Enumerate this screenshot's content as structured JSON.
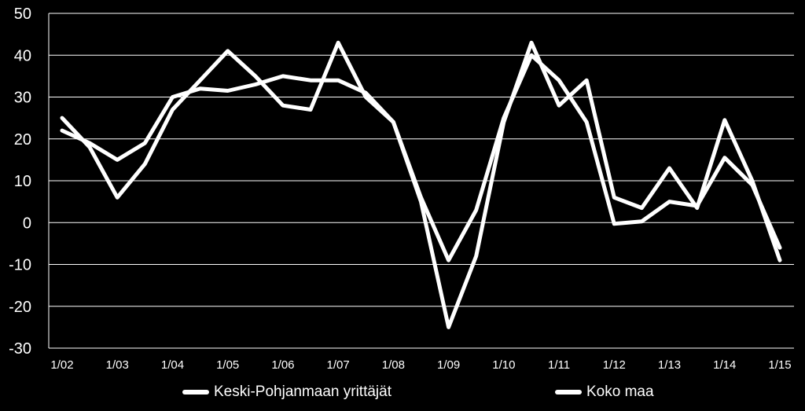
{
  "chart_data": {
    "type": "line",
    "x": [
      "1/02",
      "1/02b",
      "1/03",
      "1/03b",
      "1/04",
      "1/04b",
      "1/05",
      "1/05b",
      "1/06",
      "1/06b",
      "1/07",
      "1/07b",
      "1/08",
      "1/08b",
      "1/09",
      "1/09b",
      "1/10",
      "1/10b",
      "1/11",
      "1/11b",
      "1/12",
      "1/12b",
      "1/13",
      "1/13b",
      "1/14",
      "1/14b",
      "1/15"
    ],
    "tick_labels": [
      "1/02",
      "1/03",
      "1/04",
      "1/05",
      "1/06",
      "1/07",
      "1/08",
      "1/09",
      "1/10",
      "1/11",
      "1/12",
      "1/13",
      "1/14",
      "1/15"
    ],
    "ylim": [
      -30,
      50
    ],
    "yticks": [
      -30,
      -20,
      -10,
      0,
      10,
      20,
      30,
      40,
      50
    ],
    "grid": true,
    "legend_position": "bottom",
    "series": [
      {
        "name": "Keski-Pohjanmaan yrittäjät",
        "color": "#ffffff",
        "values": [
          25,
          18,
          6,
          14,
          27,
          34,
          41,
          35,
          28,
          27,
          43,
          30,
          24,
          5,
          -25,
          -8,
          24,
          43,
          28,
          34,
          6,
          3.5,
          13,
          3.5,
          24.5,
          10,
          -9
        ]
      },
      {
        "name": "Koko maa",
        "color": "#ffffff",
        "values": [
          22,
          19,
          15,
          19,
          30,
          32,
          31.5,
          33,
          35,
          34,
          34,
          31,
          24,
          6,
          -9,
          3,
          25,
          40,
          34,
          24,
          -0.3,
          0.3,
          5,
          4,
          15.5,
          9,
          -6
        ]
      }
    ]
  }
}
